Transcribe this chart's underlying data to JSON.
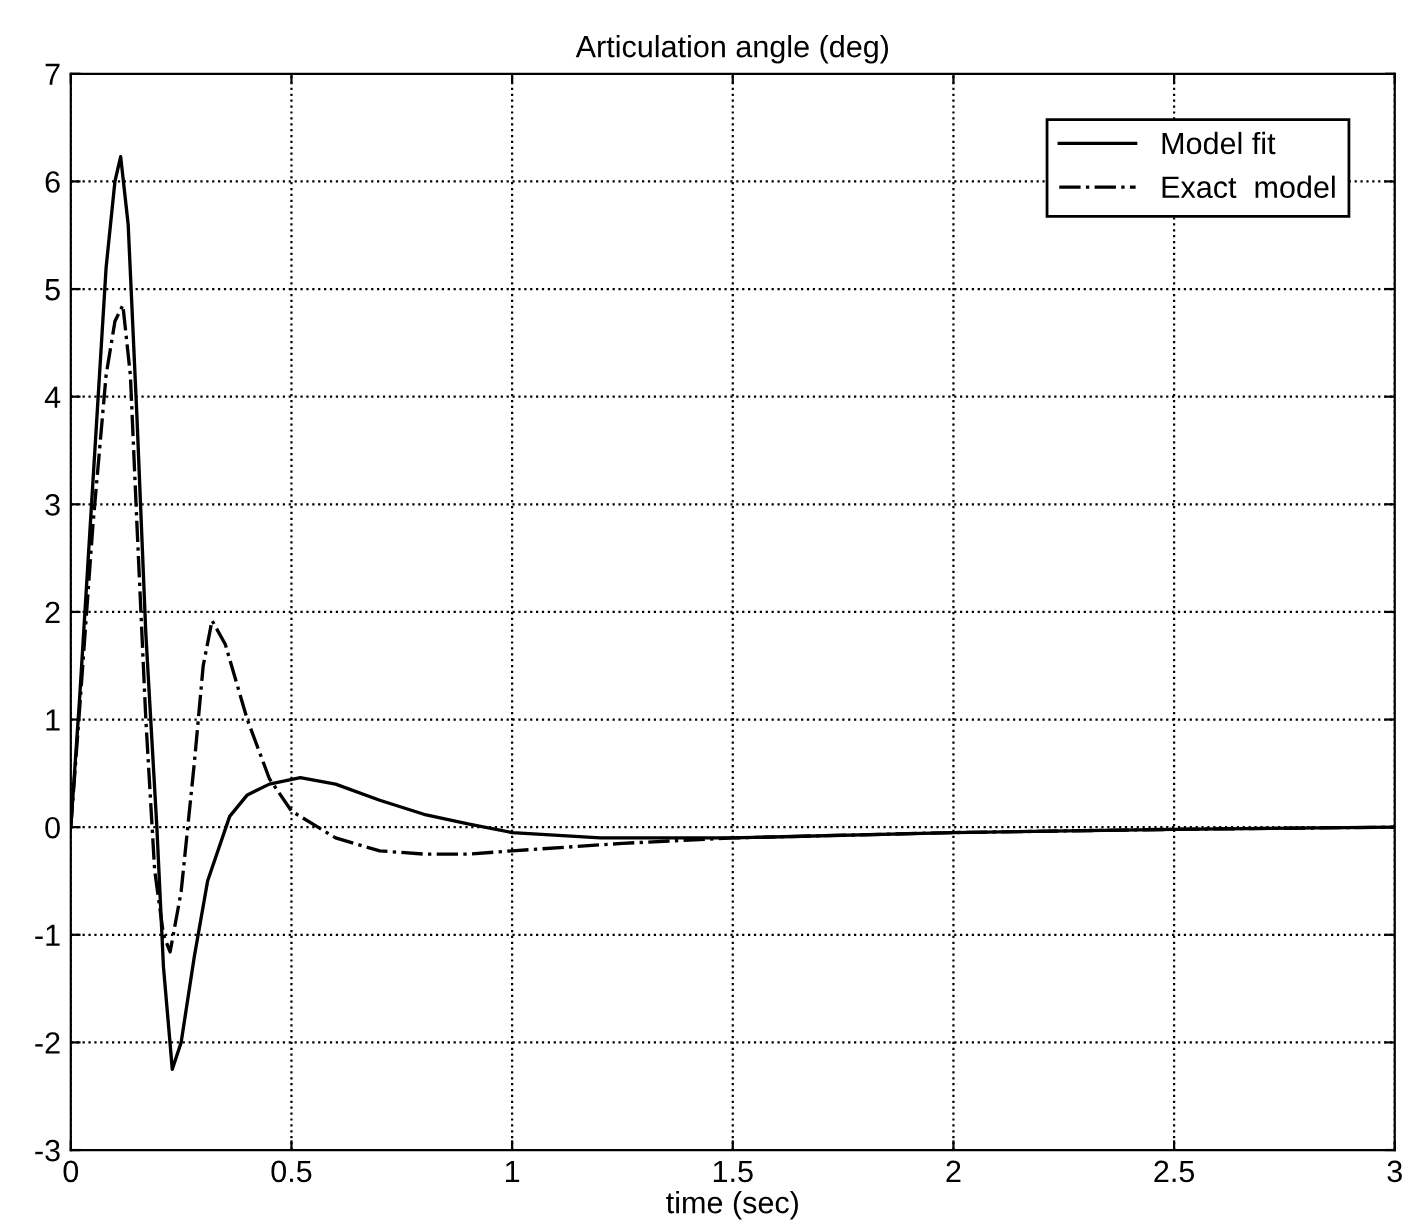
{
  "chart_data": {
    "type": "line",
    "title": "Articulation angle (deg)",
    "xlabel": "time (sec)",
    "xlim": [
      0,
      3
    ],
    "xticks": [
      0,
      0.5,
      1,
      1.5,
      2,
      2.5,
      3
    ],
    "ylim": [
      -3,
      7
    ],
    "yticks": [
      -3,
      -2,
      -1,
      0,
      1,
      2,
      3,
      4,
      5,
      6,
      7
    ],
    "grid": true,
    "legend": "top right",
    "series": [
      {
        "name": "Model fit",
        "color": "#000000",
        "line_style": "solid",
        "x": [
          0,
          0.02,
          0.05,
          0.08,
          0.1,
          0.113,
          0.13,
          0.15,
          0.17,
          0.195,
          0.21,
          0.23,
          0.25,
          0.28,
          0.31,
          0.36,
          0.4,
          0.45,
          0.52,
          0.6,
          0.7,
          0.8,
          0.9,
          1.0,
          1.2,
          1.5,
          2.0,
          2.5,
          3.0
        ],
        "values": [
          0,
          1.2,
          3.2,
          5.2,
          6.0,
          6.23,
          5.6,
          3.8,
          1.8,
          0,
          -1.3,
          -2.25,
          -2.0,
          -1.2,
          -0.5,
          0.1,
          0.3,
          0.4,
          0.46,
          0.4,
          0.25,
          0.12,
          0.03,
          -0.05,
          -0.1,
          -0.1,
          -0.05,
          -0.02,
          0
        ]
      },
      {
        "name": "Exact  model",
        "color": "#000000",
        "line_style": "dashdot",
        "x": [
          0,
          0.02,
          0.05,
          0.08,
          0.1,
          0.118,
          0.135,
          0.15,
          0.17,
          0.19,
          0.21,
          0.225,
          0.25,
          0.28,
          0.3,
          0.32,
          0.35,
          0.4,
          0.45,
          0.5,
          0.56,
          0.6,
          0.7,
          0.8,
          0.9,
          1.0,
          1.25,
          1.5,
          2.0,
          2.5,
          3.0
        ],
        "values": [
          0,
          1.1,
          2.8,
          4.2,
          4.7,
          4.85,
          4.2,
          2.8,
          1.0,
          -0.4,
          -1.0,
          -1.16,
          -0.6,
          0.6,
          1.5,
          1.92,
          1.7,
          1.0,
          0.45,
          0.15,
          0,
          -0.1,
          -0.22,
          -0.25,
          -0.25,
          -0.22,
          -0.15,
          -0.1,
          -0.05,
          -0.02,
          0
        ]
      }
    ]
  }
}
